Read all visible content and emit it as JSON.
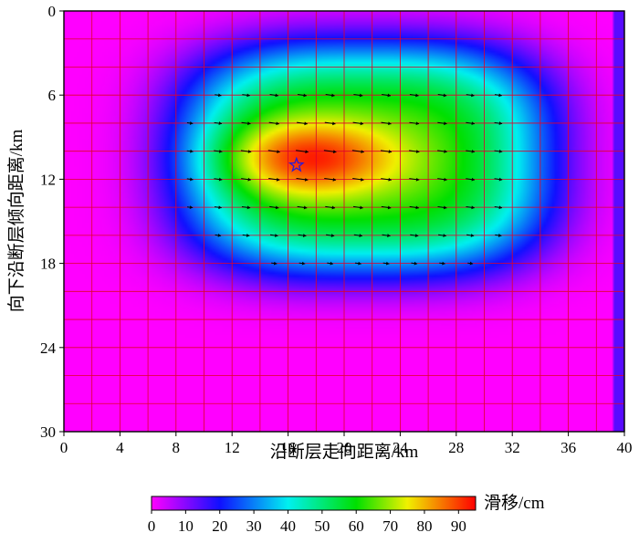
{
  "chart_data": {
    "type": "heatmap",
    "title": "",
    "xlabel": "沿断层走向距离/km",
    "ylabel": "向下沿断层倾向距离/km",
    "xlim": [
      0,
      40
    ],
    "ylim": [
      0,
      30
    ],
    "y_inverted": true,
    "x_ticks": [
      "0",
      "4",
      "8",
      "12",
      "16",
      "20",
      "24",
      "28",
      "32",
      "36",
      "40"
    ],
    "y_ticks": [
      "0",
      "6",
      "12",
      "18",
      "24",
      "30"
    ],
    "grid": true,
    "grid_spacing_km": 2,
    "grid_color": "#e0002a",
    "slip_patch": {
      "center_km": [
        21.5,
        10.5
      ],
      "half_width_km": [
        12.0,
        7.5
      ],
      "peak_center_km": [
        17.5,
        10.5
      ],
      "peak_slip_cm": 93
    },
    "hypocenter": {
      "x_km": 16.6,
      "y_km": 11.0,
      "marker": "star-icon",
      "color": "#2a1ad6"
    },
    "rake_vectors": {
      "rake_deg": -8,
      "region_x_km": [
        7,
        31
      ],
      "region_y_km": [
        6,
        19
      ],
      "spacing_km": 2
    },
    "colorbar": {
      "label": "滑移/cm",
      "min": 0,
      "max": 95,
      "ticks": [
        "0",
        "10",
        "20",
        "30",
        "40",
        "50",
        "60",
        "70",
        "80",
        "90"
      ],
      "stops": [
        {
          "value": 0,
          "color": "#ff00ff"
        },
        {
          "value": 20,
          "color": "#1010ff"
        },
        {
          "value": 40,
          "color": "#00f0f0"
        },
        {
          "value": 60,
          "color": "#00e000"
        },
        {
          "value": 75,
          "color": "#f0f000"
        },
        {
          "value": 95,
          "color": "#ff0000"
        }
      ]
    }
  }
}
